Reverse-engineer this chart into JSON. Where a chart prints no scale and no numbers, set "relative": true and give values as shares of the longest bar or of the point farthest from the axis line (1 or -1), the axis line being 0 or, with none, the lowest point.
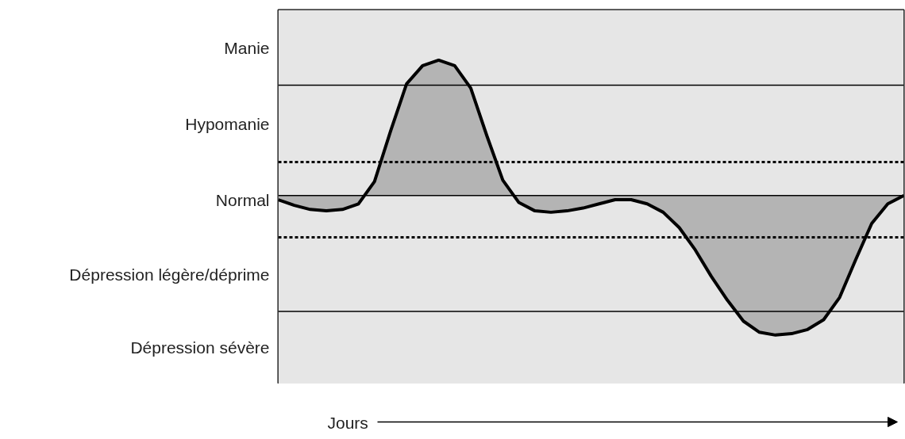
{
  "chart_data": {
    "type": "area",
    "relative": true,
    "xlabel": "Jours",
    "categories": [
      null,
      null,
      null,
      null,
      null,
      null,
      null,
      null,
      null,
      null,
      null,
      null,
      null,
      null,
      null,
      null,
      null,
      null,
      null,
      null,
      null,
      null,
      null,
      null,
      null,
      null,
      null,
      null,
      null,
      null,
      null,
      null,
      null,
      null,
      null,
      null,
      null,
      null,
      null,
      null
    ],
    "series": [
      {
        "color": "#000000",
        "values": [
          -0.03,
          -0.07,
          -0.1,
          -0.11,
          -0.1,
          -0.06,
          0.1,
          0.46,
          0.8,
          0.93,
          0.97,
          0.93,
          0.77,
          0.43,
          0.11,
          -0.05,
          -0.11,
          -0.12,
          -0.11,
          -0.09,
          -0.06,
          -0.03,
          -0.03,
          -0.06,
          -0.12,
          -0.23,
          -0.39,
          -0.58,
          -0.75,
          -0.9,
          -0.98,
          -1.0,
          -0.99,
          -0.96,
          -0.89,
          -0.73,
          -0.46,
          -0.2,
          -0.06,
          0.0
        ]
      }
    ],
    "bands": [
      {
        "axis": "y",
        "from": 0.79,
        "to": 1.33,
        "label": "Manie",
        "color": "#e6e6e6"
      },
      {
        "axis": "y",
        "from": 0.24,
        "to": 0.79,
        "label": "Hypomanie",
        "color": "#e6e6e6"
      },
      {
        "axis": "y",
        "from": -0.3,
        "to": 0.24,
        "label": "Normal",
        "color": "#e6e6e6"
      },
      {
        "axis": "y",
        "from": -0.83,
        "to": -0.3,
        "label": "Dépression légère/déprime",
        "color": "#e6e6e6"
      },
      {
        "axis": "y",
        "from": -1.35,
        "to": -0.83,
        "label": "Dépression sévère",
        "color": "#e6e6e6"
      }
    ],
    "ref_lines": [
      {
        "axis": "y",
        "value": 0.79,
        "line_style": "solid"
      },
      {
        "axis": "y",
        "value": 0,
        "line_style": "solid"
      },
      {
        "axis": "y",
        "value": -0.83,
        "line_style": "solid"
      },
      {
        "axis": "y",
        "value": 0.24,
        "line_style": "dashed"
      },
      {
        "axis": "y",
        "value": -0.3,
        "line_style": "dashed"
      }
    ]
  }
}
